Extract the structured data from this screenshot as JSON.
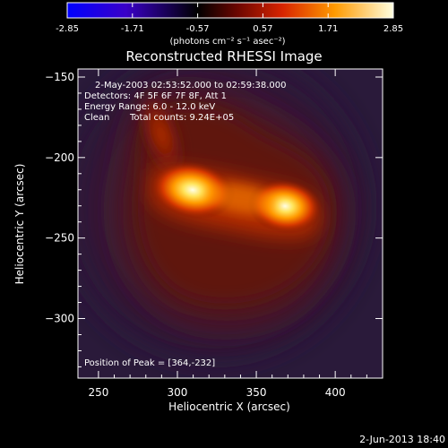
{
  "colorbar": {
    "min": -2.85,
    "max": 2.85,
    "tick_labels": [
      "-2.85",
      "-1.71",
      "-0.57",
      "0.57",
      "1.71",
      "2.85"
    ],
    "units_label": "(photons cm⁻² s⁻¹ asec⁻²)",
    "colors": [
      "#0000ff",
      "#000000",
      "#7a0a00",
      "#e83a00",
      "#ffb000",
      "#ffffd0"
    ]
  },
  "title": "Reconstructed RHESSI Image",
  "info": {
    "time_range": "2-May-2003 02:53:52.000 to 02:59:38.000",
    "detectors": "Detectors: 4F 5F 6F 7F 8F, Att 1",
    "energy": "Energy Range: 6.0 - 12.0 keV",
    "clean_label": "Clean",
    "total_counts": "Total counts: 9.24E+05",
    "peak": "Position of Peak = [364,-232]"
  },
  "axes": {
    "xlabel": "Heliocentric X (arcsec)",
    "ylabel": "Heliocentric Y (arcsec)",
    "xrange": [
      237,
      430
    ],
    "yrange": [
      -337,
      -145
    ],
    "xticks": [
      250,
      300,
      350,
      400
    ],
    "yticks": [
      -150,
      -200,
      -250,
      -300
    ]
  },
  "footer": "2-Jun-2013 18:40",
  "colors": {
    "background": "#000000",
    "text": "#ffffff",
    "halo": "#3a1a38"
  }
}
